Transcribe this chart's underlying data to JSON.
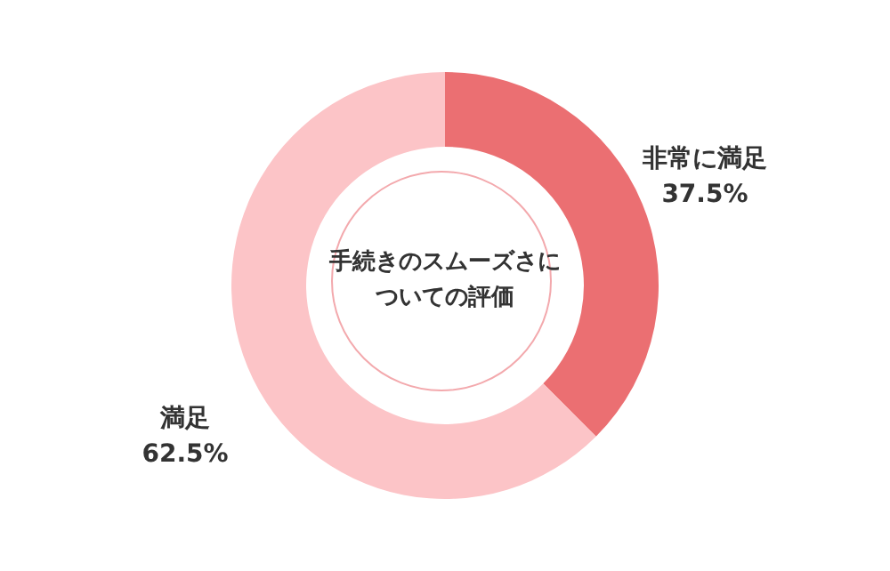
{
  "chart_data": {
    "type": "donut",
    "title": "手続きのスムーズさについての評価",
    "categories": [
      "非常に満足",
      "満足"
    ],
    "values": [
      37.5,
      62.5
    ],
    "colors": [
      "#eb6f72",
      "#fcc4c7"
    ],
    "value_labels": [
      "37.5%",
      "62.5%"
    ],
    "legend": false
  }
}
